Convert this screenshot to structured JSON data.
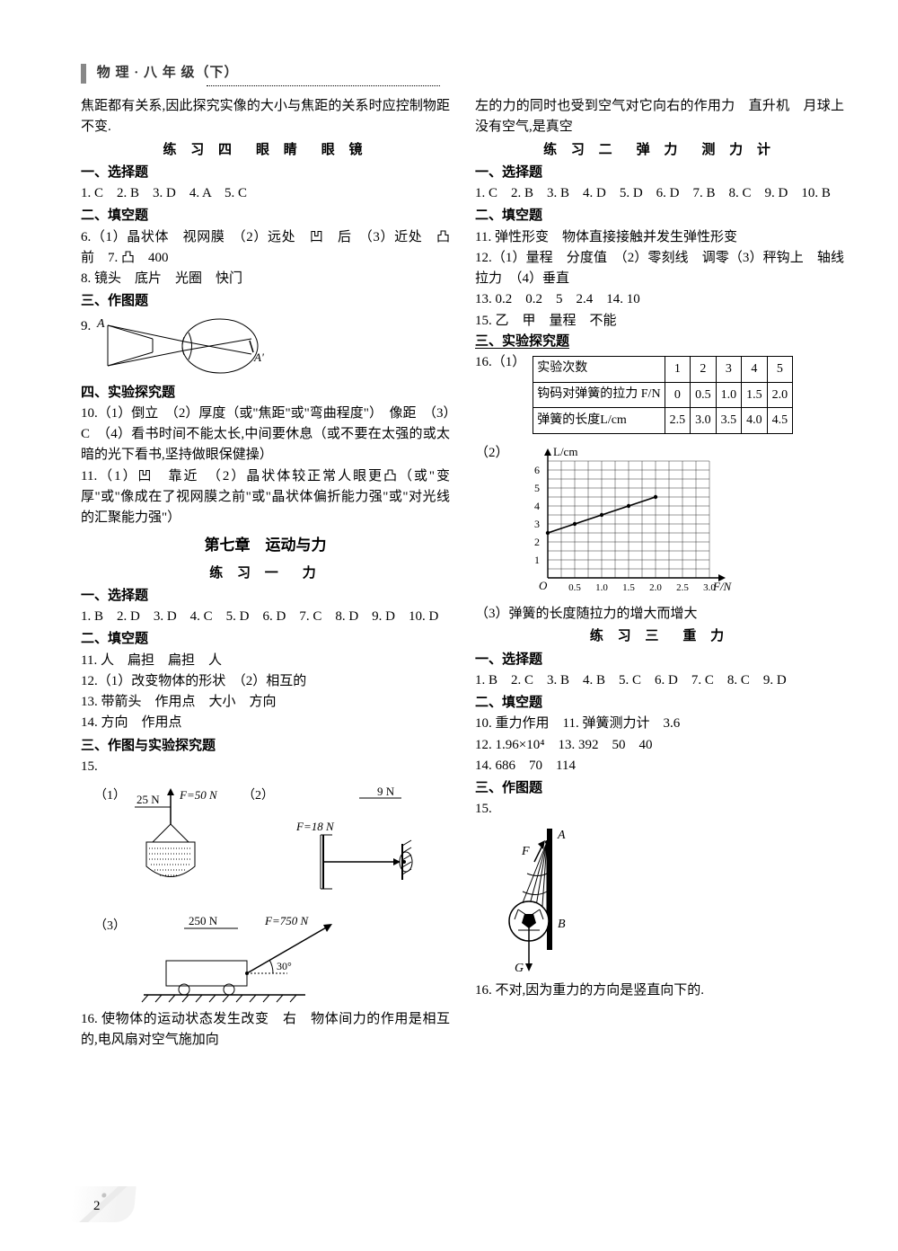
{
  "header": {
    "title": "物 理 · 八 年 级（下）"
  },
  "colL": {
    "intro": "焦距都有关系,因此探究实像的大小与焦距的关系时应控制物距不变.",
    "p4_title": "练 习 四　眼 睛　眼 镜",
    "s1": "一、选择题",
    "p4_choice": "1. C　2. B　3. D　4. A　5. C",
    "s2": "二、填空题",
    "p4_fill1": "6.（1）晶状体　视网膜　（2）远处　凹　后　（3）近处　凸　前　7. 凸　400",
    "p4_fill2": "8. 镜头　底片　光圈　快门",
    "s3": "三、作图题",
    "p4_draw": "9.",
    "s4": "四、实验探究题",
    "p4_exp1": "10.（1）倒立　（2）厚度（或\"焦距\"或\"弯曲程度\"）　像距　（3）C　（4）看书时间不能太长,中间要休息（或不要在太强的或太暗的光下看书,坚持做眼保健操）",
    "p4_exp2": "11.（1）凹　靠近　（2）晶状体较正常人眼更凸（或\"变厚\"或\"像成在了视网膜之前\"或\"晶状体偏折能力强\"或\"对光线的汇聚能力强\"）",
    "ch7": "第七章　运动与力",
    "p71_title": "练 习 一　力",
    "p71_choice": "1. B　2. D　3. D　4. C　5. D　6. D　7. C　8. D　9. D　10. D",
    "p71_fill1": "11. 人　扁担　扁担　人",
    "p71_fill2": "12.（1）改变物体的形状　（2）相互的",
    "p71_fill3": "13. 带箭头　作用点　大小　方向",
    "p71_fill4": "14. 方向　作用点",
    "s3b": "三、作图与实验探究题",
    "p71_draw": "15.",
    "fig15": {
      "part1a": "（1）",
      "part1_25": "25 N",
      "part1_f50": "F=50 N",
      "part2a": "（2）",
      "part2_9": "9 N",
      "part2_f18": "F=18 N",
      "part3a": "（3）",
      "part3_250": "250 N",
      "part3_f750": "F=750 N",
      "part3_ang": "30°"
    },
    "p71_q16": "16. 使物体的运动状态发生改变　右　物体间力的作用是相互的,电风扇对空气施加向"
  },
  "colR": {
    "cont": "左的力的同时也受到空气对它向右的作用力　直升机　月球上没有空气,是真空",
    "p72_title": "练 习 二　弹 力　测 力 计",
    "s1": "一、选择题",
    "p72_choice": "1. C　2. B　3. B　4. D　5. D　6. D　7. B　8. C　9. D　10. B",
    "s2": "二、填空题",
    "p72_fill1": "11. 弹性形变　物体直接接触并发生弹性形变",
    "p72_fill2": "12.（1）量程　分度值　（2）零刻线　调零（3）秤钩上　轴线　拉力　（4）垂直",
    "p72_fill3": "13. 0.2　0.2　5　2.4　14. 10",
    "p72_fill4": "15. 乙　甲　量程　不能",
    "s3": "三、实验探究题",
    "p72_exp_intro": "16.（1）",
    "table": {
      "h1": "实验次数",
      "cols": [
        "1",
        "2",
        "3",
        "4",
        "5"
      ],
      "r1h": "钩码对弹簧的拉力 F/N",
      "r1": [
        "0",
        "0.5",
        "1.0",
        "1.5",
        "2.0"
      ],
      "r2h": "弹簧的长度L/cm",
      "r2": [
        "2.5",
        "3.0",
        "3.5",
        "4.0",
        "4.5"
      ]
    },
    "graph_label": "（2）",
    "graph": {
      "ylabel": "L/cm",
      "xlabel": "F/N",
      "yticks": [
        "1",
        "2",
        "3",
        "4",
        "5",
        "6"
      ],
      "xticks": [
        "0.5",
        "1.0",
        "1.5",
        "2.0",
        "2.5",
        "3.0"
      ],
      "origin": "O",
      "points": [
        [
          0,
          2.5
        ],
        [
          0.5,
          3.0
        ],
        [
          1.0,
          3.5
        ],
        [
          1.5,
          4.0
        ],
        [
          2.0,
          4.5
        ]
      ]
    },
    "p72_exp3": "（3）弹簧的长度随拉力的增大而增大",
    "p73_title": "练 习 三　重 力",
    "p73_choice": "1. B　2. C　3. B　4. B　5. C　6. D　7. C　8. C　9. D",
    "p73_fill1": "10. 重力作用　11. 弹簧测力计　3.6",
    "p73_fill2": "12. 1.96×10⁴　13. 392　50　40",
    "p73_fill3": "14. 686　70　114",
    "s3d": "三、作图题",
    "p73_draw": "15.",
    "fig15r": {
      "A": "A",
      "B": "B",
      "F": "F",
      "G": "G"
    },
    "p73_q16": "16. 不对,因为重力的方向是竖直向下的."
  },
  "pagenum": "2"
}
